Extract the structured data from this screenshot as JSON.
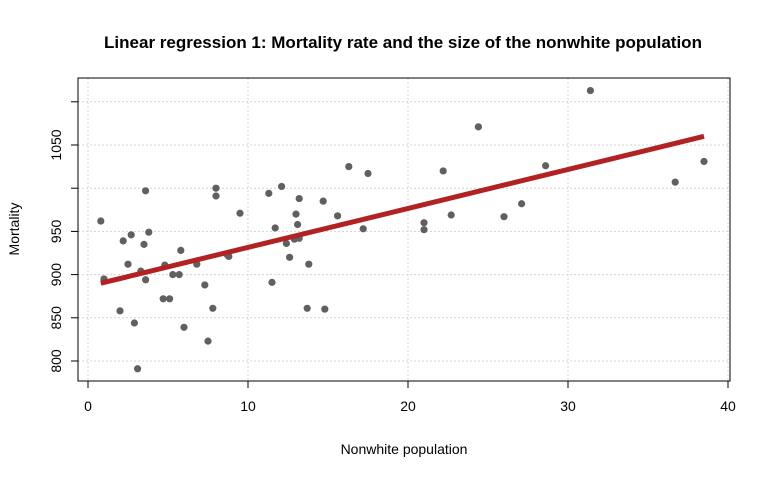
{
  "chart_data": {
    "type": "scatter",
    "title": "Linear regression 1: Mortality rate and the size of the nonwhite population",
    "xlabel": "Nonwhite population",
    "ylabel": "Mortality",
    "xlim": [
      0,
      40
    ],
    "ylim": [
      780,
      1110
    ],
    "xticks": [
      "0",
      "10",
      "20",
      "30",
      "40"
    ],
    "yticks": [
      "800",
      "850",
      "900",
      "950",
      "1050"
    ],
    "grid": true,
    "point_color": "#606060",
    "line_color": "#b22222",
    "points": [
      [
        0.8,
        962
      ],
      [
        1.0,
        895
      ],
      [
        2.0,
        858
      ],
      [
        2.2,
        939
      ],
      [
        2.5,
        912
      ],
      [
        2.7,
        946
      ],
      [
        2.9,
        844
      ],
      [
        3.1,
        791
      ],
      [
        3.3,
        904
      ],
      [
        3.5,
        935
      ],
      [
        3.6,
        894
      ],
      [
        3.6,
        997
      ],
      [
        3.8,
        949
      ],
      [
        4.7,
        872
      ],
      [
        4.8,
        911
      ],
      [
        5.1,
        872
      ],
      [
        5.3,
        900
      ],
      [
        5.7,
        900
      ],
      [
        5.8,
        928
      ],
      [
        6.0,
        839
      ],
      [
        6.8,
        912
      ],
      [
        7.3,
        888
      ],
      [
        7.5,
        823
      ],
      [
        7.8,
        861
      ],
      [
        8.0,
        1000
      ],
      [
        8.0,
        991
      ],
      [
        8.7,
        923
      ],
      [
        8.8,
        921
      ],
      [
        9.5,
        971
      ],
      [
        11.3,
        994
      ],
      [
        11.5,
        891
      ],
      [
        11.7,
        954
      ],
      [
        12.1,
        1002
      ],
      [
        12.4,
        936
      ],
      [
        12.6,
        920
      ],
      [
        12.9,
        941
      ],
      [
        13.0,
        970
      ],
      [
        13.1,
        958
      ],
      [
        13.2,
        988
      ],
      [
        13.2,
        942
      ],
      [
        13.7,
        861
      ],
      [
        13.8,
        912
      ],
      [
        14.7,
        985
      ],
      [
        14.8,
        860
      ],
      [
        15.6,
        968
      ],
      [
        16.3,
        1025
      ],
      [
        17.2,
        953
      ],
      [
        17.5,
        1017
      ],
      [
        21.0,
        952
      ],
      [
        21.0,
        960
      ],
      [
        22.2,
        1020
      ],
      [
        22.7,
        969
      ],
      [
        24.4,
        1071
      ],
      [
        26.0,
        967
      ],
      [
        27.1,
        982
      ],
      [
        28.6,
        1026
      ],
      [
        31.4,
        1113
      ],
      [
        36.7,
        1007
      ],
      [
        38.5,
        1031
      ]
    ],
    "regression_line": {
      "x": [
        0.8,
        38.5
      ],
      "y": [
        890,
        1060
      ]
    }
  }
}
